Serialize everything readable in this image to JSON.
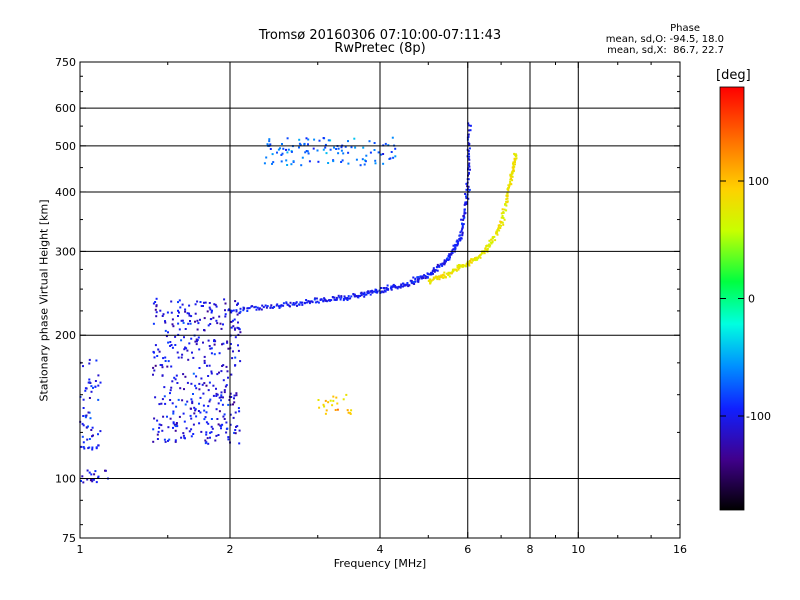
{
  "header": {
    "title": "Tromsø 20160306 07:10:00-07:11:43",
    "subtitle": "RwPretec (8p)"
  },
  "phase_box": {
    "heading": "Phase",
    "line_o": "mean, sd,O: -94.5, 18.0",
    "line_x": "mean, sd,X:  86.7, 22.7"
  },
  "colorbar": {
    "unit": "[deg]",
    "range": [
      -180,
      180
    ],
    "ticks": [
      "100",
      "0",
      "-100"
    ],
    "tick_values": [
      100,
      0,
      -100
    ]
  },
  "chart_data": {
    "type": "scatter",
    "xlabel": "Frequency [MHz]",
    "ylabel": "Stationary phase Virtual Height [km]",
    "xscale": "log",
    "yscale": "log",
    "xlim": [
      1,
      16
    ],
    "ylim": [
      75,
      750
    ],
    "xticks": [
      1,
      2,
      4,
      6,
      8,
      10,
      16
    ],
    "xtick_labels": [
      "1",
      "2",
      "4",
      "6",
      "8",
      "10",
      "16"
    ],
    "yticks": [
      75,
      100,
      200,
      300,
      400,
      500,
      600,
      750
    ],
    "ytick_labels": [
      "75",
      "100",
      "200",
      "300",
      "400",
      "500",
      "600",
      "750"
    ],
    "grid": true,
    "vertical_gridlines": [
      2,
      4,
      6,
      8,
      10
    ],
    "horizontal_gridlines": [
      100,
      200,
      300,
      400,
      500,
      600
    ],
    "color_encoding": "phase (deg)",
    "clusters": [
      {
        "trace": "E-layer blob",
        "x_range": [
          1.4,
          2.1
        ],
        "y_range": [
          118,
          240
        ],
        "phase_deg": -105
      },
      {
        "trace": "F-layer O trace",
        "points": [
          [
            2.0,
            225
          ],
          [
            2.5,
            230
          ],
          [
            3.0,
            236
          ],
          [
            3.5,
            241
          ],
          [
            4.0,
            248
          ],
          [
            4.5,
            256
          ],
          [
            5.0,
            268
          ],
          [
            5.5,
            290
          ],
          [
            5.8,
            320
          ],
          [
            6.0,
            400
          ],
          [
            6.05,
            560
          ]
        ],
        "phase_deg": -100
      },
      {
        "trace": "F-layer X trace",
        "points": [
          [
            5.0,
            260
          ],
          [
            5.5,
            270
          ],
          [
            6.0,
            283
          ],
          [
            6.5,
            300
          ],
          [
            7.0,
            340
          ],
          [
            7.3,
            420
          ],
          [
            7.5,
            480
          ]
        ],
        "phase_deg": 80
      },
      {
        "trace": "Upper echo band",
        "x_range": [
          2.35,
          4.3
        ],
        "y_range": [
          455,
          520
        ],
        "phase_deg": -70
      },
      {
        "trace": "Low-height echoes near 100 km",
        "x_range": [
          1.0,
          1.15
        ],
        "y_range": [
          98,
          104
        ],
        "phase_deg": -110
      },
      {
        "trace": "Low-frequency patch",
        "x_range": [
          1.0,
          1.1
        ],
        "y_range": [
          115,
          180
        ],
        "phase_deg": -100
      },
      {
        "trace": "Yellow patch",
        "x_range": [
          3.0,
          3.5
        ],
        "y_range": [
          135,
          150
        ],
        "phase_deg": 95
      }
    ]
  }
}
